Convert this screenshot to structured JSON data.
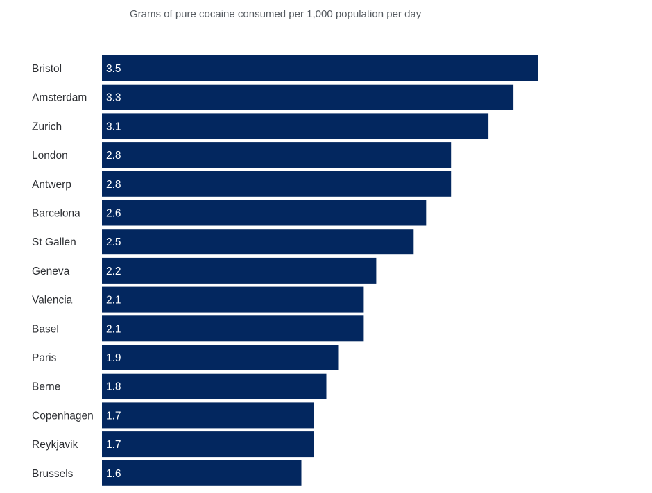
{
  "chart_data": {
    "type": "bar",
    "orientation": "horizontal",
    "title": "Grams of pure cocaine consumed per 1,000 population per day",
    "xlabel": "",
    "ylabel": "",
    "categories": [
      "Bristol",
      "Amsterdam",
      "Zurich",
      "London",
      "Antwerp",
      "Barcelona",
      "St Gallen",
      "Geneva",
      "Valencia",
      "Basel",
      "Paris",
      "Berne",
      "Copenhagen",
      "Reykjavik",
      "Brussels"
    ],
    "values": [
      3.5,
      3.3,
      3.1,
      2.8,
      2.8,
      2.6,
      2.5,
      2.2,
      2.1,
      2.1,
      1.9,
      1.8,
      1.7,
      1.7,
      1.6
    ],
    "value_labels": [
      "3.5",
      "3.3",
      "3.1",
      "2.8",
      "2.8",
      "2.6",
      "2.5",
      "2.2",
      "2.1",
      "2.1",
      "1.9",
      "1.8",
      "1.7",
      "1.7",
      "1.6"
    ],
    "xlim": [
      0,
      3.5
    ],
    "grid": false,
    "legend": "none",
    "bar_color": "#03275f"
  }
}
